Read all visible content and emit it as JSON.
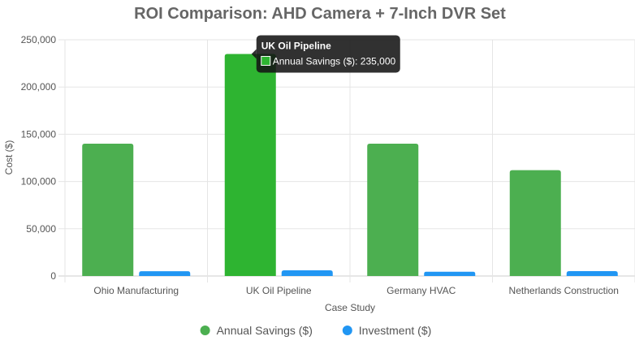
{
  "chart_data": {
    "type": "bar",
    "title": "ROI Comparison: AHD Camera + 7-Inch DVR Set",
    "xlabel": "Case Study",
    "ylabel": "Cost ($)",
    "categories": [
      "Ohio Manufacturing",
      "UK Oil Pipeline",
      "Germany HVAC",
      "Netherlands Construction"
    ],
    "series": [
      {
        "name": "Annual Savings ($)",
        "values": [
          140000,
          235000,
          140000,
          112000
        ],
        "color": "#4CAF50",
        "highlight_color": "#2EB431"
      },
      {
        "name": "Investment ($)",
        "values": [
          5000,
          6000,
          4500,
          5200
        ],
        "color": "#2196F3"
      }
    ],
    "ylim": [
      0,
      250000
    ],
    "yticks": [
      "0",
      "50,000",
      "100,000",
      "150,000",
      "200,000",
      "250,000"
    ],
    "grid": true,
    "legend_position": "bottom",
    "tooltip": {
      "title": "UK Oil Pipeline",
      "label": "Annual Savings ($): 235,000",
      "category_index": 1,
      "series_index": 0
    }
  }
}
